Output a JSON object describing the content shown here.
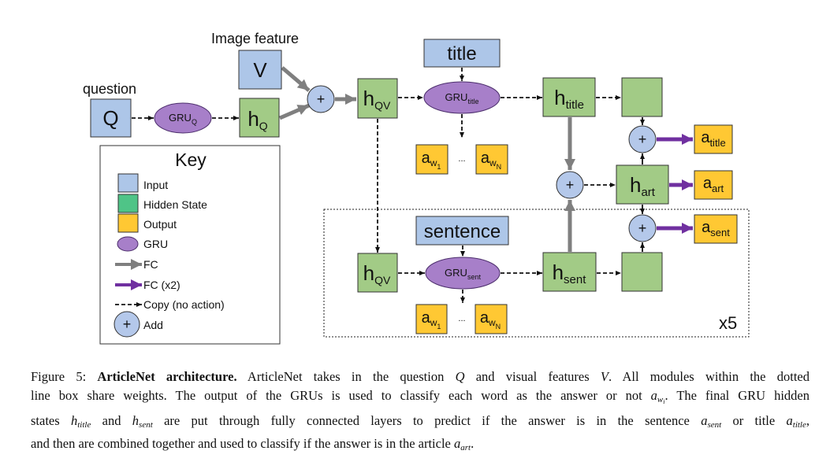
{
  "colors": {
    "input": "#adc6e8",
    "hidden": "#a2cb86",
    "hidden_key": "#4fc487",
    "output": "#ffc833",
    "gru": "#a77fc9",
    "fc": "#7f7f7f",
    "fc_x2": "#7030a0",
    "add": "#b4c8ea"
  },
  "labels": {
    "image_feature": "Image feature",
    "question": "question",
    "repeat": "x5"
  },
  "nodes": {
    "q": {
      "main": "Q"
    },
    "v": {
      "main": "V"
    },
    "gru_q": {
      "main": "GRU",
      "sub": "Q"
    },
    "h_q": {
      "main": "h",
      "sub": "Q"
    },
    "h_qv": {
      "main": "h",
      "sub": "QV"
    },
    "title": {
      "main": "title"
    },
    "gru_title": {
      "main": "GRU",
      "sub": "title"
    },
    "aw1": {
      "main": "a",
      "sub": "w",
      "subsub": "1"
    },
    "awn": {
      "main": "a",
      "sub": "w",
      "subsub": "N"
    },
    "ellipsis": "...",
    "h_title": {
      "main": "h",
      "sub": "title"
    },
    "a_title": {
      "main": "a",
      "sub": "title"
    },
    "h_art": {
      "main": "h",
      "sub": "art"
    },
    "a_art": {
      "main": "a",
      "sub": "art"
    },
    "a_sent": {
      "main": "a",
      "sub": "sent"
    },
    "sentence": {
      "main": "sentence"
    },
    "gru_sent": {
      "main": "GRU",
      "sub": "sent"
    },
    "h_sent": {
      "main": "h",
      "sub": "sent"
    },
    "plus": "+"
  },
  "key": {
    "title": "Key",
    "items": [
      {
        "label": "Input",
        "icon": "input-swatch"
      },
      {
        "label": "Hidden State",
        "icon": "hidden-state-swatch"
      },
      {
        "label": "Output",
        "icon": "output-swatch"
      },
      {
        "label": "GRU",
        "icon": "gru-ellipse"
      },
      {
        "label": "FC",
        "icon": "gray-arrow"
      },
      {
        "label": "FC (x2)",
        "icon": "purple-arrow"
      },
      {
        "label": "Copy (no action)",
        "icon": "dashed-arrow"
      },
      {
        "label": "Add",
        "icon": "plus-circle"
      }
    ]
  },
  "caption": {
    "l1": {
      "fig": "Figure 5: ",
      "bold": "ArticleNet architecture.",
      "t1": " ArticleNet takes in the question ",
      "m1": "Q",
      "t2": " and visual features ",
      "m2": "V",
      "t3": ". All modules within the dotted"
    },
    "l2": {
      "t1": "line box share weights. The output of the GRUs is used to classify each word as the answer or not ",
      "m1": "a",
      "m1s": "w",
      "m1ss": "i",
      "t2": ". The final GRU hidden"
    },
    "l3": {
      "t1": "states ",
      "m1": "h",
      "m1s": "title",
      "t2": " and ",
      "m2": "h",
      "m2s": "sent",
      "t3": " are put through fully connected layers to predict if the answer is in the sentence ",
      "m3": "a",
      "m3s": "sent",
      "t4": " or title ",
      "m4": "a",
      "m4s": "title",
      "t5": ","
    },
    "l4": {
      "t1": "and then are combined together and used to classify if the answer is in the article ",
      "m1": "a",
      "m1s": "art",
      "t2": "."
    }
  }
}
